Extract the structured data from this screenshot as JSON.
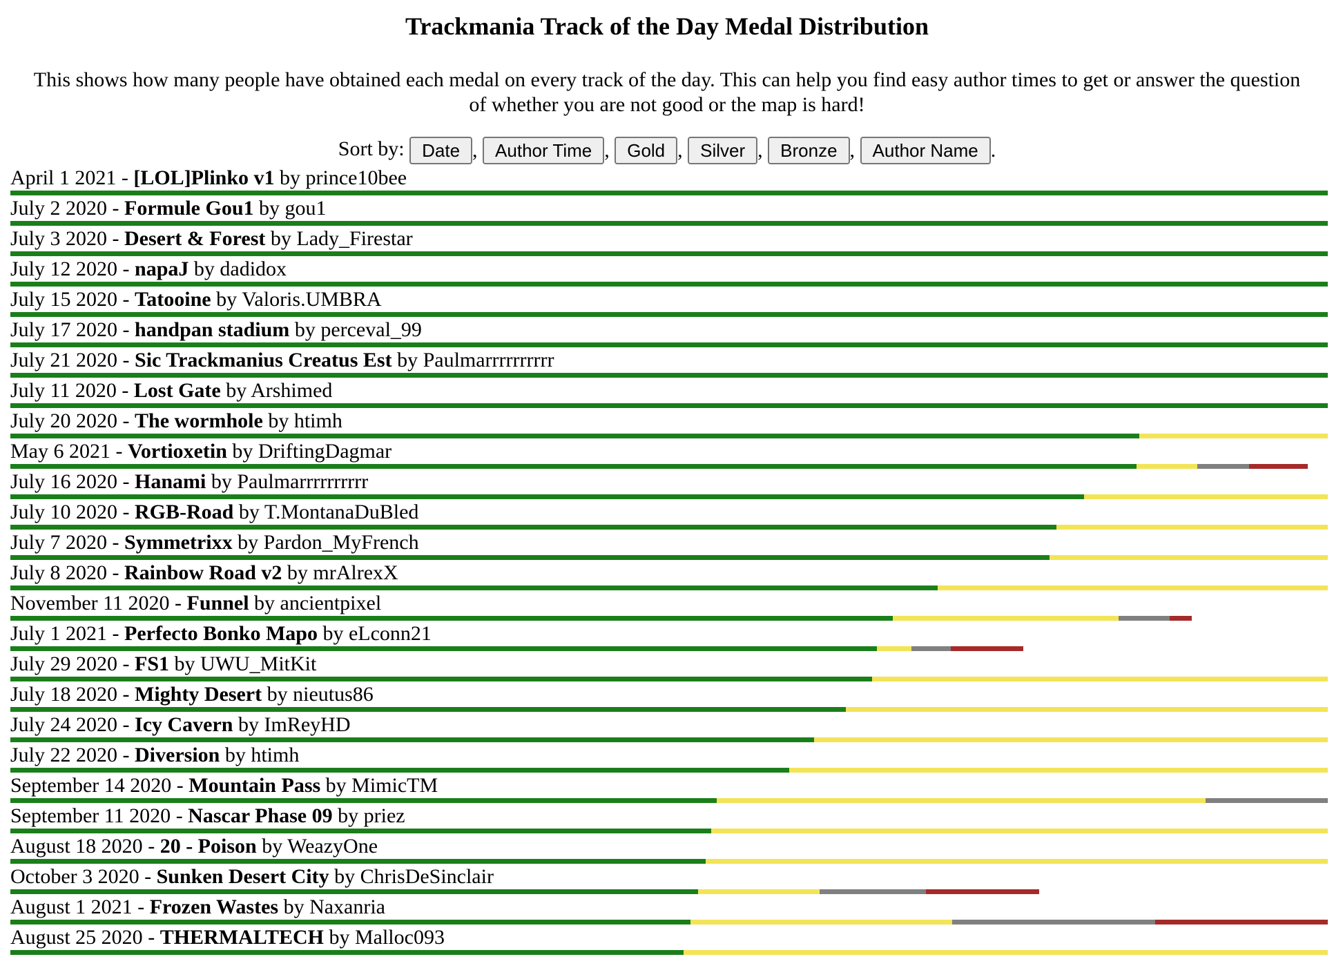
{
  "page": {
    "title": "Trackmania Track of the Day Medal Distribution",
    "description": "This shows how many people have obtained each medal on every track of the day. This can help you find easy author times to get or answer the question of whether you are not good or the map is hard!",
    "sort_label": "Sort by:",
    "sort_buttons": [
      "Date",
      "Author Time",
      "Gold",
      "Silver",
      "Bronze",
      "Author Name"
    ],
    "sort_end": "."
  },
  "colors": {
    "author": "#1a7f1a",
    "gold": "#f3e457",
    "silver": "#808080",
    "bronze": "#a52a2a"
  },
  "tracks": [
    {
      "date": "April 1 2021",
      "name": "[LOL]Plinko v1",
      "author": "prince10bee",
      "medals": {
        "author": 1.0,
        "gold": 0.0,
        "silver": 0.0,
        "bronze": 0.0
      }
    },
    {
      "date": "July 2 2020",
      "name": "Formule Gou1",
      "author": "gou1",
      "medals": {
        "author": 1.0,
        "gold": 0.0,
        "silver": 0.0,
        "bronze": 0.0
      }
    },
    {
      "date": "July 3 2020",
      "name": "Desert & Forest",
      "author": "Lady_Firestar",
      "medals": {
        "author": 1.0,
        "gold": 0.0,
        "silver": 0.0,
        "bronze": 0.0
      }
    },
    {
      "date": "July 12 2020",
      "name": "napaJ",
      "author": "dadidox",
      "medals": {
        "author": 1.0,
        "gold": 0.0,
        "silver": 0.0,
        "bronze": 0.0
      }
    },
    {
      "date": "July 15 2020",
      "name": "Tatooine",
      "author": "Valoris.UMBRA",
      "medals": {
        "author": 1.0,
        "gold": 0.0,
        "silver": 0.0,
        "bronze": 0.0
      }
    },
    {
      "date": "July 17 2020",
      "name": "handpan stadium",
      "author": "perceval_99",
      "medals": {
        "author": 1.0,
        "gold": 0.0,
        "silver": 0.0,
        "bronze": 0.0
      }
    },
    {
      "date": "July 21 2020",
      "name": "Sic Trackmanius Creatus Est",
      "author": "Paulmarrrrrrrrrr",
      "medals": {
        "author": 1.0,
        "gold": 0.0,
        "silver": 0.0,
        "bronze": 0.0
      }
    },
    {
      "date": "July 11 2020",
      "name": "Lost Gate",
      "author": "Arshimed",
      "medals": {
        "author": 1.0,
        "gold": 0.0,
        "silver": 0.0,
        "bronze": 0.0
      }
    },
    {
      "date": "July 20 2020",
      "name": "The wormhole",
      "author": "htimh",
      "medals": {
        "author": 0.857,
        "gold": 0.143,
        "silver": 0.0,
        "bronze": 0.0
      }
    },
    {
      "date": "May 6 2021",
      "name": "Vortioxetin",
      "author": "DriftingDagmar",
      "medals": {
        "author": 0.855,
        "gold": 0.046,
        "silver": 0.039,
        "bronze": 0.045
      }
    },
    {
      "date": "July 16 2020",
      "name": "Hanami",
      "author": "Paulmarrrrrrrrrr",
      "medals": {
        "author": 0.815,
        "gold": 0.185,
        "silver": 0.0,
        "bronze": 0.0
      }
    },
    {
      "date": "July 10 2020",
      "name": "RGB-Road",
      "author": "T.MontanaDuBled",
      "medals": {
        "author": 0.794,
        "gold": 0.206,
        "silver": 0.0,
        "bronze": 0.0
      }
    },
    {
      "date": "July 7 2020",
      "name": "Symmetrixx",
      "author": "Pardon_MyFrench",
      "medals": {
        "author": 0.789,
        "gold": 0.211,
        "silver": 0.0,
        "bronze": 0.0
      }
    },
    {
      "date": "July 8 2020",
      "name": "Rainbow Road v2",
      "author": "mrAlrexX",
      "medals": {
        "author": 0.704,
        "gold": 0.296,
        "silver": 0.0,
        "bronze": 0.0
      }
    },
    {
      "date": "November 11 2020",
      "name": "Funnel",
      "author": "ancientpixel",
      "medals": {
        "author": 0.67,
        "gold": 0.171,
        "silver": 0.039,
        "bronze": 0.017
      }
    },
    {
      "date": "July 1 2021",
      "name": "Perfecto Bonko Mapo",
      "author": "eLconn21",
      "medals": {
        "author": 0.658,
        "gold": 0.026,
        "silver": 0.03,
        "bronze": 0.055
      }
    },
    {
      "date": "July 29 2020",
      "name": "FS1",
      "author": "UWU_MitKit",
      "medals": {
        "author": 0.654,
        "gold": 0.346,
        "silver": 0.0,
        "bronze": 0.0
      }
    },
    {
      "date": "July 18 2020",
      "name": "Mighty Desert",
      "author": "nieutus86",
      "medals": {
        "author": 0.634,
        "gold": 0.366,
        "silver": 0.0,
        "bronze": 0.0
      }
    },
    {
      "date": "July 24 2020",
      "name": "Icy Cavern",
      "author": "ImReyHD",
      "medals": {
        "author": 0.61,
        "gold": 0.39,
        "silver": 0.0,
        "bronze": 0.0
      }
    },
    {
      "date": "July 22 2020",
      "name": "Diversion",
      "author": "htimh",
      "medals": {
        "author": 0.591,
        "gold": 0.409,
        "silver": 0.0,
        "bronze": 0.0
      }
    },
    {
      "date": "September 14 2020",
      "name": "Mountain Pass",
      "author": "MimicTM",
      "medals": {
        "author": 0.536,
        "gold": 0.371,
        "silver": 0.093,
        "bronze": 0.0
      }
    },
    {
      "date": "September 11 2020",
      "name": "Nascar Phase 09",
      "author": "priez",
      "medals": {
        "author": 0.532,
        "gold": 0.468,
        "silver": 0.0,
        "bronze": 0.0
      }
    },
    {
      "date": "August 18 2020",
      "name": "20 - Poison",
      "author": "WeazyOne",
      "medals": {
        "author": 0.528,
        "gold": 0.472,
        "silver": 0.0,
        "bronze": 0.0
      }
    },
    {
      "date": "October 3 2020",
      "name": "Sunken Desert City",
      "author": "ChrisDeSinclair",
      "medals": {
        "author": 0.522,
        "gold": 0.092,
        "silver": 0.081,
        "bronze": 0.086
      }
    },
    {
      "date": "August 1 2021",
      "name": "Frozen Wastes",
      "author": "Naxanria",
      "medals": {
        "author": 0.516,
        "gold": 0.199,
        "silver": 0.154,
        "bronze": 0.131
      }
    },
    {
      "date": "August 25 2020",
      "name": "THERMALTECH",
      "author": "Malloc093",
      "medals": {
        "author": 0.511,
        "gold": 0.489,
        "silver": 0.0,
        "bronze": 0.0
      }
    }
  ]
}
